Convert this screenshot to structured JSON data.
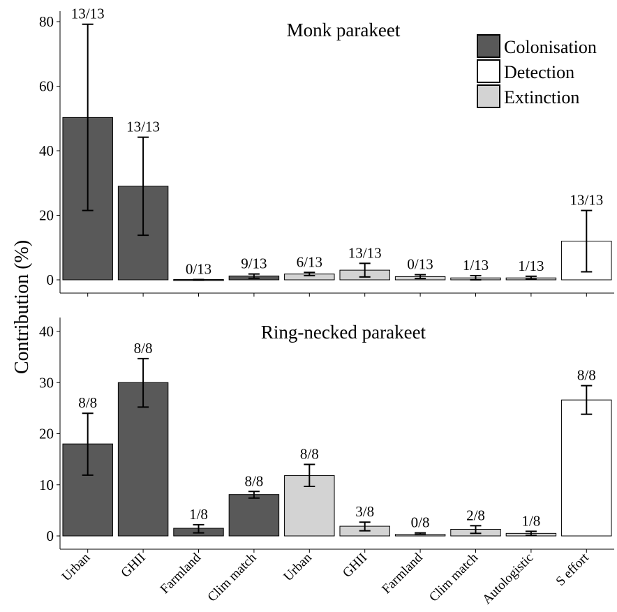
{
  "chart_data": {
    "type": "bar",
    "ylabel": "Contribution (%)",
    "categories": [
      "Urban",
      "GHII",
      "Farmland",
      "Clim match",
      "Urban",
      "GHII",
      "Farmland",
      "Clim match",
      "Autologistic",
      "S effort"
    ],
    "groups": [
      "Colonisation",
      "Colonisation",
      "Colonisation",
      "Colonisation",
      "Extinction",
      "Extinction",
      "Extinction",
      "Extinction",
      "Extinction",
      "Detection"
    ],
    "legend": {
      "position": "top-right",
      "entries": [
        {
          "name": "Colonisation",
          "color": "#595959"
        },
        {
          "name": "Detection",
          "color": "#ffffff"
        },
        {
          "name": "Extinction",
          "color": "#d3d3d3"
        }
      ]
    },
    "panels": [
      {
        "title": "Monk parakeet",
        "ylim": [
          0,
          83
        ],
        "yticks": [
          0,
          20,
          40,
          60,
          80
        ],
        "values": [
          50.3,
          29.0,
          0.1,
          1.2,
          1.8,
          3.0,
          1.0,
          0.6,
          0.6,
          12.0
        ],
        "err_low": [
          21.5,
          13.8,
          0.0,
          0.5,
          1.3,
          0.9,
          0.4,
          0.0,
          0.2,
          2.5
        ],
        "err_high": [
          79.2,
          44.2,
          0.1,
          1.8,
          2.3,
          5.1,
          1.6,
          1.3,
          1.1,
          21.5
        ],
        "labels": [
          "13/13",
          "13/13",
          "0/13",
          "9/13",
          "6/13",
          "13/13",
          "0/13",
          "1/13",
          "1/13",
          "13/13"
        ]
      },
      {
        "title": "Ring-necked parakeet",
        "ylim": [
          0,
          43
        ],
        "yticks": [
          0,
          10,
          20,
          30,
          40
        ],
        "values": [
          18.0,
          30.0,
          1.5,
          8.1,
          11.8,
          1.9,
          0.3,
          1.3,
          0.5,
          26.6
        ],
        "err_low": [
          11.9,
          25.2,
          0.6,
          7.4,
          9.7,
          1.0,
          0.3,
          0.5,
          0.1,
          23.8
        ],
        "err_high": [
          24.0,
          34.7,
          2.2,
          8.7,
          14.0,
          2.7,
          0.6,
          2.0,
          0.9,
          29.4
        ],
        "labels": [
          "8/8",
          "8/8",
          "1/8",
          "8/8",
          "8/8",
          "3/8",
          "0/8",
          "2/8",
          "1/8",
          "8/8"
        ]
      }
    ]
  }
}
